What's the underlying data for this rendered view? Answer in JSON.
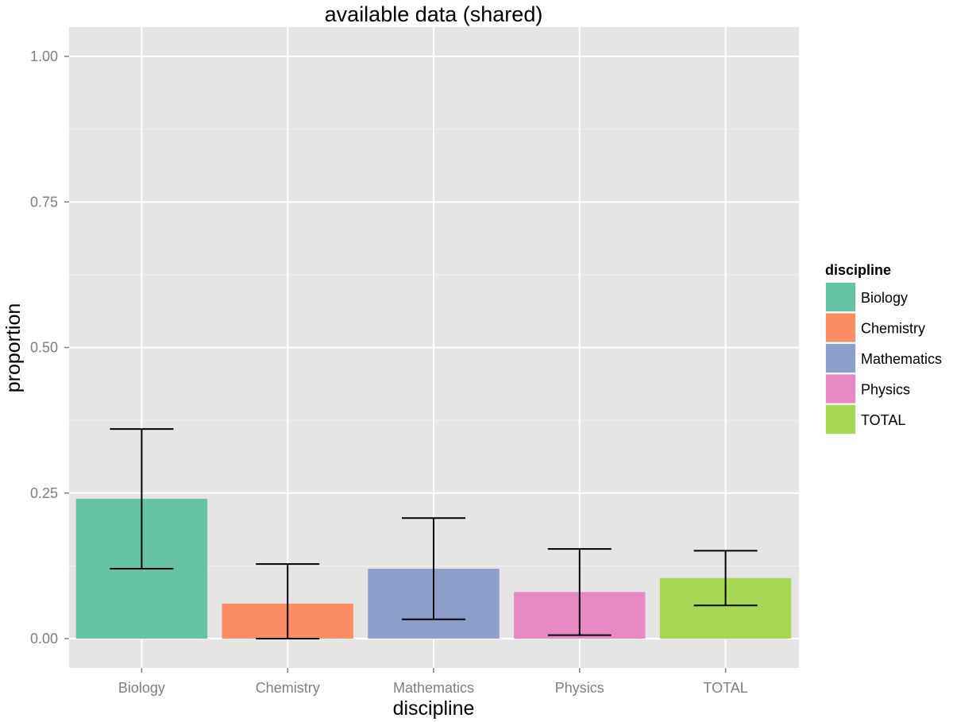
{
  "chart_data": {
    "type": "bar",
    "title": "available data (shared)",
    "xlabel": "discipline",
    "ylabel": "proportion",
    "categories": [
      "Biology",
      "Chemistry",
      "Mathematics",
      "Physics",
      "TOTAL"
    ],
    "values": [
      0.24,
      0.06,
      0.12,
      0.08,
      0.104
    ],
    "error_low": [
      0.12,
      0.0,
      0.033,
      0.006,
      0.057
    ],
    "error_high": [
      0.36,
      0.128,
      0.207,
      0.154,
      0.151
    ],
    "ylim": [
      0,
      1.05
    ],
    "yticks": [
      0.0,
      0.25,
      0.5,
      0.75,
      1.0
    ],
    "ytick_labels": [
      "0.00",
      "0.25",
      "0.50",
      "0.75",
      "1.00"
    ],
    "grid": true,
    "legend": {
      "title": "discipline",
      "position": "right",
      "entries": [
        "Biology",
        "Chemistry",
        "Mathematics",
        "Physics",
        "TOTAL"
      ]
    },
    "colors": [
      "#66c2a5",
      "#fc8d62",
      "#8da0cb",
      "#e78ac3",
      "#a6d854"
    ],
    "panel_background": "#e5e5e5",
    "grid_color": "#ffffff"
  }
}
